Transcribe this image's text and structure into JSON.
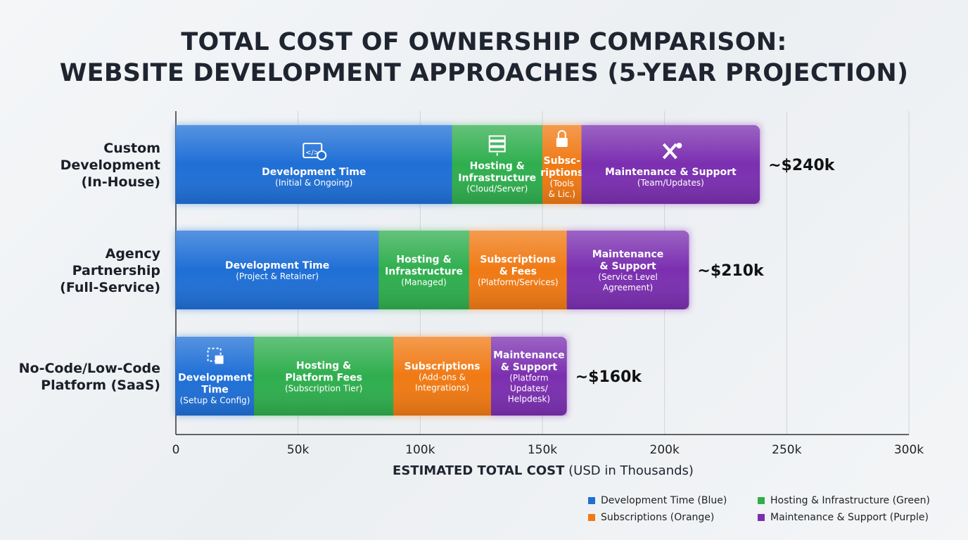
{
  "chart_data": {
    "type": "bar",
    "orientation": "horizontal",
    "stacked": true,
    "title": [
      "TOTAL COST OF OWNERSHIP COMPARISON:",
      "WEBSITE DEVELOPMENT APPROACHES (5-YEAR PROJECTION)"
    ],
    "xlabel_bold": "ESTIMATED TOTAL COST",
    "xlabel_rest": " (USD in Thousands)",
    "xlim": [
      0,
      300
    ],
    "xticks": [
      0,
      50,
      100,
      150,
      200,
      250,
      300
    ],
    "xtick_labels": [
      "0",
      "50k",
      "100k",
      "150k",
      "200k",
      "250k",
      "300k"
    ],
    "grid": "vertical",
    "categories": [
      [
        "Custom",
        "Development",
        "(In-House)"
      ],
      [
        "Agency",
        "Partnership",
        "(Full-Service)"
      ],
      [
        "No-Code/Low-Code",
        "Platform (SaaS)"
      ]
    ],
    "totals": [
      "~$240k",
      "~$210k",
      "~$160k"
    ],
    "series": [
      {
        "name": "Development Time (Blue)",
        "color": "#1f6fd6",
        "values": [
          113,
          83,
          32
        ]
      },
      {
        "name": "Hosting & Infrastructure (Green)",
        "color": "#2fae4e",
        "values": [
          37,
          37,
          57
        ]
      },
      {
        "name": "Subscriptions (Orange)",
        "color": "#f07a14",
        "values": [
          16,
          40,
          40
        ]
      },
      {
        "name": "Maintenance & Support (Purple)",
        "color": "#7b2fb0",
        "values": [
          73,
          50,
          31
        ]
      }
    ],
    "segment_labels": [
      [
        {
          "icon": "code-window-icon",
          "main": [
            "Development Time"
          ],
          "sub": [
            "(Initial & Ongoing)"
          ]
        },
        {
          "icon": "server-icon",
          "main": [
            "Hosting &",
            "Infrastructure"
          ],
          "sub": [
            "(Cloud/Server)"
          ]
        },
        {
          "icon": "lock-icon",
          "main": [
            "Subsc-",
            "riptions"
          ],
          "sub": [
            "(Tools",
            "& Lic.)"
          ]
        },
        {
          "icon": "tools-icon",
          "main": [
            "Maintenance & Support"
          ],
          "sub": [
            "(Team/Updates)"
          ]
        }
      ],
      [
        {
          "main": [
            "Development Time"
          ],
          "sub": [
            "(Project & Retainer)"
          ]
        },
        {
          "main": [
            "Hosting &",
            "Infrastructure"
          ],
          "sub": [
            "(Managed)"
          ]
        },
        {
          "main": [
            "Subscriptions",
            "& Fees"
          ],
          "sub": [
            "(Platform/Services)"
          ]
        },
        {
          "main": [
            "Maintenance",
            "& Support"
          ],
          "sub": [
            "(Service Level",
            "Agreement)"
          ]
        }
      ],
      [
        {
          "icon": "flowchart-icon",
          "main": [
            "Development",
            "Time"
          ],
          "sub": [
            "(Setup & Config)"
          ]
        },
        {
          "main": [
            "Hosting &",
            "Platform Fees"
          ],
          "sub": [
            "(Subscription Tier)"
          ]
        },
        {
          "main": [
            "Subscriptions"
          ],
          "sub": [
            "(Add-ons &",
            "Integrations)"
          ]
        },
        {
          "main": [
            "Maintenance",
            "& Support"
          ],
          "sub": [
            "(Platform",
            "Updates/",
            "Helpdesk)"
          ]
        }
      ]
    ]
  }
}
